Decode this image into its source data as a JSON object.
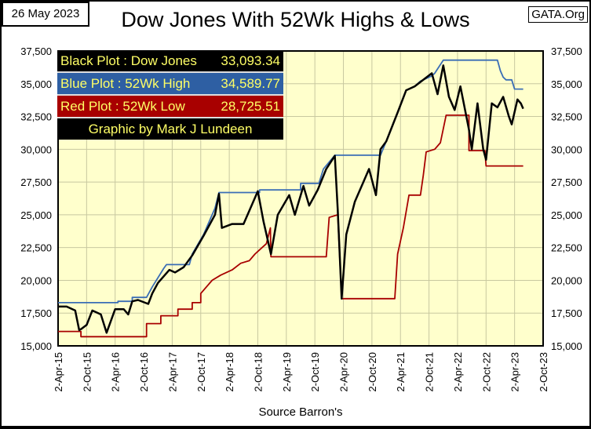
{
  "header": {
    "date": "26 May 2023",
    "site": "GATA.Org"
  },
  "legend": [
    {
      "label": "Black Plot : Dow Jones",
      "value": "33,093.34"
    },
    {
      "label": "Blue Plot  : 52Wk High",
      "value": "34,589.77"
    },
    {
      "label": "Red Plot   : 52Wk Low",
      "value": "28,725.51"
    }
  ],
  "credit": "Graphic by Mark J Lundeen",
  "chart_data": {
    "type": "line",
    "title": "Dow Jones With 52Wk Highs & Lows",
    "xlabel": "Source Barron's",
    "ylabel": "",
    "xlim": [
      2015.25,
      2023.75
    ],
    "ylim": [
      15000,
      37500
    ],
    "yticks": [
      15000,
      17500,
      20000,
      22500,
      25000,
      27500,
      30000,
      32500,
      35000,
      37500
    ],
    "ytick_labels": [
      "15,000",
      "17,500",
      "20,000",
      "22,500",
      "25,000",
      "27,500",
      "30,000",
      "32,500",
      "35,000",
      "37,500"
    ],
    "xtick_labels": [
      "2-Apr-15",
      "2-Oct-15",
      "2-Apr-16",
      "2-Oct-16",
      "2-Apr-17",
      "2-Oct-17",
      "2-Apr-18",
      "2-Oct-18",
      "2-Apr-19",
      "2-Oct-19",
      "2-Apr-20",
      "2-Oct-20",
      "2-Apr-21",
      "2-Oct-21",
      "2-Apr-22",
      "2-Oct-22",
      "2-Apr-23",
      "2-Oct-23"
    ],
    "grid": true,
    "colors": {
      "dow": "#000000",
      "high": "#3a6db5",
      "low": "#a80000",
      "plot_bg": "#ffffcc",
      "grid": "#c8c8a0"
    },
    "series": [
      {
        "name": "Dow Jones",
        "x": [
          2015.25,
          2015.4,
          2015.55,
          2015.62,
          2015.66,
          2015.75,
          2015.85,
          2016.0,
          2016.1,
          2016.25,
          2016.4,
          2016.48,
          2016.55,
          2016.65,
          2016.83,
          2016.9,
          2017.0,
          2017.2,
          2017.3,
          2017.45,
          2017.6,
          2017.8,
          2018.0,
          2018.07,
          2018.12,
          2018.3,
          2018.5,
          2018.75,
          2018.85,
          2018.98,
          2019.1,
          2019.3,
          2019.4,
          2019.55,
          2019.65,
          2019.8,
          2019.95,
          2020.1,
          2020.15,
          2020.22,
          2020.3,
          2020.45,
          2020.6,
          2020.7,
          2020.82,
          2020.9,
          2021.0,
          2021.2,
          2021.35,
          2021.5,
          2021.65,
          2021.8,
          2021.9,
          2022.0,
          2022.1,
          2022.2,
          2022.3,
          2022.45,
          2022.5,
          2022.6,
          2022.7,
          2022.75,
          2022.85,
          2022.95,
          2023.05,
          2023.15,
          2023.2,
          2023.3,
          2023.36,
          2023.4
        ],
        "values": [
          18000,
          18000,
          17700,
          16200,
          16300,
          16600,
          17700,
          17400,
          16000,
          17800,
          17800,
          17400,
          18400,
          18500,
          18200,
          19000,
          19800,
          20800,
          20600,
          21000,
          21900,
          23400,
          25000,
          26600,
          24000,
          24300,
          24300,
          26800,
          24500,
          22000,
          25000,
          26500,
          25000,
          27200,
          25700,
          26900,
          28500,
          29500,
          25400,
          18600,
          23500,
          26000,
          27500,
          28500,
          26500,
          30000,
          30600,
          32800,
          34500,
          34800,
          35300,
          35800,
          34200,
          36400,
          34000,
          33000,
          34800,
          31500,
          30000,
          33500,
          30000,
          29200,
          33500,
          33200,
          34000,
          32500,
          31900,
          33800,
          33500,
          33093
        ]
      },
      {
        "name": "52Wk High",
        "x": [
          2015.25,
          2016.3,
          2016.3,
          2016.55,
          2016.55,
          2016.8,
          2016.9,
          2017.1,
          2017.15,
          2017.55,
          2017.6,
          2017.8,
          2018.0,
          2018.07,
          2018.78,
          2018.78,
          2019.5,
          2019.5,
          2019.82,
          2019.9,
          2020.1,
          2020.9,
          2021.0,
          2021.2,
          2021.35,
          2021.5,
          2021.6,
          2021.8,
          2021.85,
          2022.0,
          2022.95,
          2023.0,
          2023.05,
          2023.1,
          2023.2,
          2023.25,
          2023.4
        ],
        "values": [
          18300,
          18300,
          18400,
          18400,
          18700,
          18700,
          19500,
          20900,
          21200,
          21200,
          22000,
          23500,
          25500,
          26700,
          26700,
          26900,
          26900,
          27400,
          27400,
          28500,
          29550,
          29550,
          30600,
          32800,
          34500,
          34800,
          35200,
          35600,
          35800,
          36800,
          36800,
          36000,
          35500,
          35300,
          35300,
          34600,
          34590
        ]
      },
      {
        "name": "52Wk Low",
        "x": [
          2015.25,
          2015.65,
          2015.65,
          2016.8,
          2016.8,
          2017.05,
          2017.05,
          2017.35,
          2017.35,
          2017.6,
          2017.6,
          2017.75,
          2017.75,
          2017.95,
          2018.1,
          2018.3,
          2018.45,
          2018.6,
          2018.7,
          2018.8,
          2018.9,
          2018.97,
          2018.98,
          2019.95,
          2020.0,
          2020.15,
          2020.22,
          2021.15,
          2021.2,
          2021.3,
          2021.4,
          2021.6,
          2021.65,
          2021.7,
          2021.85,
          2021.95,
          2022.05,
          2022.45,
          2022.45,
          2022.73,
          2022.75,
          2023.4
        ],
        "values": [
          16100,
          16100,
          15700,
          15700,
          16700,
          16700,
          17300,
          17300,
          17800,
          17800,
          18300,
          18300,
          19000,
          20000,
          20400,
          20800,
          21300,
          21500,
          22000,
          22400,
          22800,
          24000,
          21800,
          21800,
          24800,
          25000,
          18600,
          18600,
          22000,
          24000,
          26500,
          26500,
          28000,
          29800,
          30000,
          30500,
          32600,
          32600,
          29900,
          29900,
          28725,
          28725
        ]
      }
    ]
  }
}
